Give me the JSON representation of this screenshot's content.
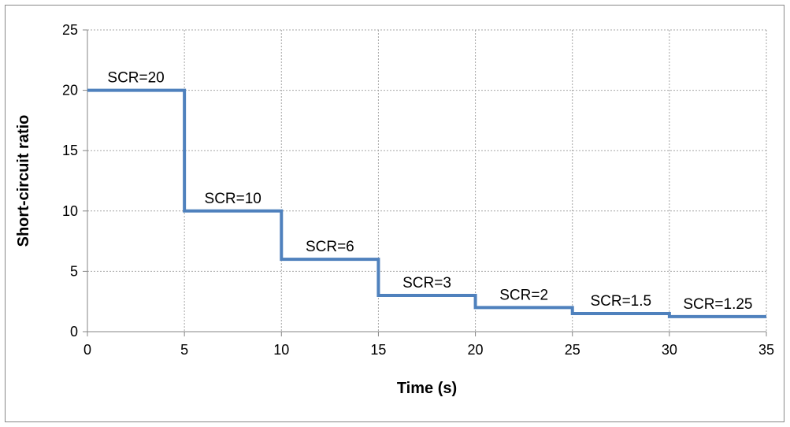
{
  "chart_data": {
    "type": "line",
    "step": true,
    "xlabel": "Time (s)",
    "ylabel": "Short-circuit ratio",
    "xlim": [
      0,
      35
    ],
    "ylim": [
      0,
      25
    ],
    "xticks": [
      0,
      5,
      10,
      15,
      20,
      25,
      30,
      35
    ],
    "yticks": [
      0,
      5,
      10,
      15,
      20,
      25
    ],
    "grid": true,
    "series": [
      {
        "color": "#4f81bd",
        "segments": [
          {
            "x_start": 0,
            "x_end": 5,
            "y": 20,
            "label": "SCR=20"
          },
          {
            "x_start": 5,
            "x_end": 10,
            "y": 10,
            "label": "SCR=10"
          },
          {
            "x_start": 10,
            "x_end": 15,
            "y": 6,
            "label": "SCR=6"
          },
          {
            "x_start": 15,
            "x_end": 20,
            "y": 3,
            "label": "SCR=3"
          },
          {
            "x_start": 20,
            "x_end": 25,
            "y": 2,
            "label": "SCR=2"
          },
          {
            "x_start": 25,
            "x_end": 30,
            "y": 1.5,
            "label": "SCR=1.5"
          },
          {
            "x_start": 30,
            "x_end": 35,
            "y": 1.25,
            "label": "SCR=1.25"
          }
        ]
      }
    ]
  }
}
